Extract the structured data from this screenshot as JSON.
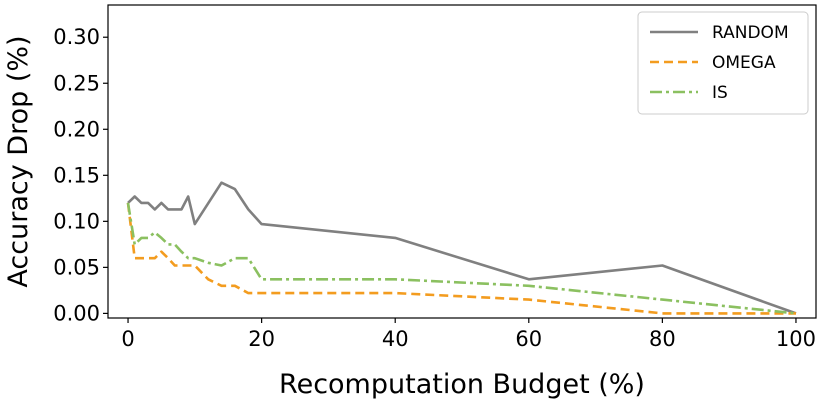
{
  "chart_data": {
    "type": "line",
    "title": "",
    "xlabel": "Recomputation Budget (%)",
    "ylabel": "Accuracy Drop (%)",
    "xlim": [
      -3,
      103
    ],
    "ylim": [
      -0.005,
      0.335
    ],
    "x_ticks": [
      0,
      20,
      40,
      60,
      80,
      100
    ],
    "y_ticks": [
      0.0,
      0.05,
      0.1,
      0.15,
      0.2,
      0.25,
      0.3
    ],
    "x_tick_labels": [
      "0",
      "20",
      "40",
      "60",
      "80",
      "100"
    ],
    "y_tick_labels": [
      "0.00",
      "0.05",
      "0.10",
      "0.15",
      "0.20",
      "0.25",
      "0.30"
    ],
    "grid": false,
    "legend_position": "top-right",
    "series": [
      {
        "name": "RANDOM",
        "color": "#808080",
        "dash": "solid",
        "x": [
          0,
          1,
          2,
          3,
          4,
          5,
          6,
          7,
          8,
          9,
          10,
          14,
          16,
          18,
          20,
          40,
          60,
          80,
          100
        ],
        "y": [
          0.12,
          0.127,
          0.12,
          0.12,
          0.113,
          0.12,
          0.113,
          0.113,
          0.113,
          0.127,
          0.097,
          0.142,
          0.135,
          0.113,
          0.097,
          0.082,
          0.037,
          0.052,
          0.0
        ]
      },
      {
        "name": "OMEGA",
        "color": "#f39c1f",
        "dash": "dashed",
        "x": [
          0,
          1,
          2,
          3,
          4,
          5,
          6,
          7,
          8,
          9,
          10,
          12,
          14,
          16,
          18,
          20,
          40,
          60,
          80,
          100
        ],
        "y": [
          0.12,
          0.06,
          0.06,
          0.06,
          0.06,
          0.067,
          0.06,
          0.052,
          0.052,
          0.052,
          0.052,
          0.037,
          0.03,
          0.03,
          0.022,
          0.022,
          0.022,
          0.015,
          0.0,
          0.0
        ]
      },
      {
        "name": "IS",
        "color": "#8bc060",
        "dash": "dashdot",
        "x": [
          0,
          1,
          2,
          3,
          4,
          5,
          6,
          7,
          8,
          9,
          10,
          12,
          14,
          16,
          18,
          20,
          40,
          60,
          80,
          100
        ],
        "y": [
          0.12,
          0.075,
          0.082,
          0.082,
          0.088,
          0.082,
          0.075,
          0.075,
          0.067,
          0.06,
          0.06,
          0.055,
          0.052,
          0.06,
          0.06,
          0.037,
          0.037,
          0.03,
          0.015,
          0.0
        ]
      }
    ]
  }
}
